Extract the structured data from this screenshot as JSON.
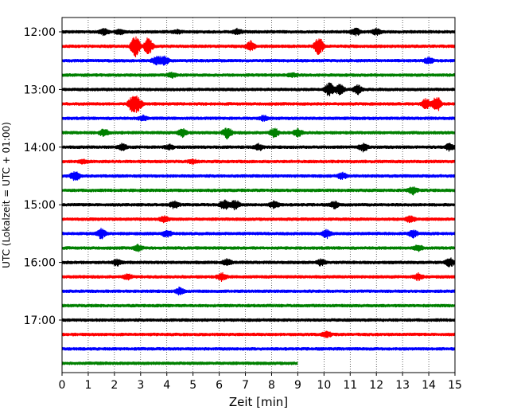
{
  "chart_data": {
    "type": "line",
    "title": "",
    "xlabel": "Zeit  [min]",
    "ylabel": "UTC (Lokalzeit = UTC + 01:00)",
    "xlim": [
      0,
      15
    ],
    "x_ticks": [
      "0",
      "1",
      "2",
      "3",
      "4",
      "5",
      "6",
      "7",
      "8",
      "9",
      "10",
      "11",
      "12",
      "13",
      "14",
      "15"
    ],
    "y_ticks": [
      "12:00",
      "13:00",
      "14:00",
      "15:00",
      "16:00",
      "17:00"
    ],
    "grid": "vertical dotted",
    "colors": [
      "#000000",
      "#ff0000",
      "#0000ff",
      "#008000"
    ],
    "series": [
      {
        "start": "12:00",
        "end_min": 15,
        "color": "#000000",
        "bursts": [
          [
            1.6,
            0.5
          ],
          [
            2.2,
            0.4
          ],
          [
            4.4,
            0.3
          ],
          [
            6.7,
            0.4
          ],
          [
            11.2,
            0.6
          ],
          [
            12.0,
            0.5
          ]
        ]
      },
      {
        "start": "12:15",
        "end_min": 15,
        "color": "#ff0000",
        "bursts": [
          [
            2.8,
            1.8
          ],
          [
            3.3,
            1.4
          ],
          [
            7.2,
            0.8
          ],
          [
            9.8,
            1.5
          ]
        ]
      },
      {
        "start": "12:30",
        "end_min": 15,
        "color": "#0000ff",
        "bursts": [
          [
            3.6,
            0.6
          ],
          [
            3.9,
            0.7
          ],
          [
            14.0,
            0.5
          ]
        ]
      },
      {
        "start": "12:45",
        "end_min": 15,
        "color": "#008000",
        "bursts": [
          [
            4.2,
            0.4
          ],
          [
            8.8,
            0.3
          ]
        ]
      },
      {
        "start": "13:00",
        "end_min": 15,
        "color": "#000000",
        "bursts": [
          [
            10.2,
            1.1
          ],
          [
            10.6,
            0.9
          ],
          [
            11.3,
            0.7
          ]
        ]
      },
      {
        "start": "13:15",
        "end_min": 15,
        "color": "#ff0000",
        "bursts": [
          [
            2.7,
            1.3
          ],
          [
            2.9,
            1.0
          ],
          [
            13.9,
            0.9
          ],
          [
            14.3,
            1.3
          ]
        ]
      },
      {
        "start": "13:30",
        "end_min": 15,
        "color": "#0000ff",
        "bursts": [
          [
            3.1,
            0.4
          ],
          [
            7.7,
            0.4
          ]
        ]
      },
      {
        "start": "13:45",
        "end_min": 15,
        "color": "#008000",
        "bursts": [
          [
            1.6,
            0.6
          ],
          [
            4.6,
            0.6
          ],
          [
            6.3,
            0.9
          ],
          [
            8.1,
            0.7
          ],
          [
            9.0,
            0.6
          ]
        ]
      },
      {
        "start": "14:00",
        "end_min": 15,
        "color": "#000000",
        "bursts": [
          [
            2.3,
            0.5
          ],
          [
            4.1,
            0.4
          ],
          [
            7.5,
            0.5
          ],
          [
            11.5,
            0.6
          ],
          [
            14.8,
            0.6
          ]
        ]
      },
      {
        "start": "14:15",
        "end_min": 15,
        "color": "#ff0000",
        "bursts": [
          [
            0.8,
            0.3
          ],
          [
            5.0,
            0.3
          ]
        ]
      },
      {
        "start": "14:30",
        "end_min": 15,
        "color": "#0000ff",
        "bursts": [
          [
            0.5,
            0.8
          ],
          [
            10.7,
            0.5
          ]
        ]
      },
      {
        "start": "14:45",
        "end_min": 15,
        "color": "#008000",
        "bursts": [
          [
            13.4,
            0.6
          ]
        ]
      },
      {
        "start": "15:00",
        "end_min": 15,
        "color": "#000000",
        "bursts": [
          [
            4.3,
            0.6
          ],
          [
            6.2,
            0.8
          ],
          [
            6.6,
            0.8
          ],
          [
            8.1,
            0.6
          ],
          [
            10.4,
            0.5
          ]
        ]
      },
      {
        "start": "15:15",
        "end_min": 15,
        "color": "#ff0000",
        "bursts": [
          [
            3.9,
            0.5
          ],
          [
            13.3,
            0.5
          ]
        ]
      },
      {
        "start": "15:30",
        "end_min": 15,
        "color": "#0000ff",
        "bursts": [
          [
            1.5,
            0.8
          ],
          [
            4.0,
            0.6
          ],
          [
            10.1,
            0.7
          ],
          [
            13.4,
            0.6
          ]
        ]
      },
      {
        "start": "15:45",
        "end_min": 15,
        "color": "#008000",
        "bursts": [
          [
            2.9,
            0.5
          ],
          [
            13.6,
            0.4
          ]
        ]
      },
      {
        "start": "16:00",
        "end_min": 15,
        "color": "#000000",
        "bursts": [
          [
            2.1,
            0.5
          ],
          [
            6.3,
            0.5
          ],
          [
            9.9,
            0.5
          ],
          [
            14.8,
            0.7
          ]
        ]
      },
      {
        "start": "16:15",
        "end_min": 15,
        "color": "#ff0000",
        "bursts": [
          [
            2.5,
            0.4
          ],
          [
            6.1,
            0.6
          ],
          [
            13.6,
            0.5
          ]
        ]
      },
      {
        "start": "16:30",
        "end_min": 15,
        "color": "#0000ff",
        "bursts": [
          [
            4.5,
            0.6
          ]
        ]
      },
      {
        "start": "16:45",
        "end_min": 15,
        "color": "#008000",
        "bursts": []
      },
      {
        "start": "17:00",
        "end_min": 15,
        "color": "#000000",
        "bursts": []
      },
      {
        "start": "17:15",
        "end_min": 15,
        "color": "#ff0000",
        "bursts": [
          [
            10.1,
            0.5
          ]
        ]
      },
      {
        "start": "17:30",
        "end_min": 15,
        "color": "#0000ff",
        "bursts": []
      },
      {
        "start": "17:45",
        "end_min": 9,
        "color": "#008000",
        "bursts": []
      }
    ]
  }
}
